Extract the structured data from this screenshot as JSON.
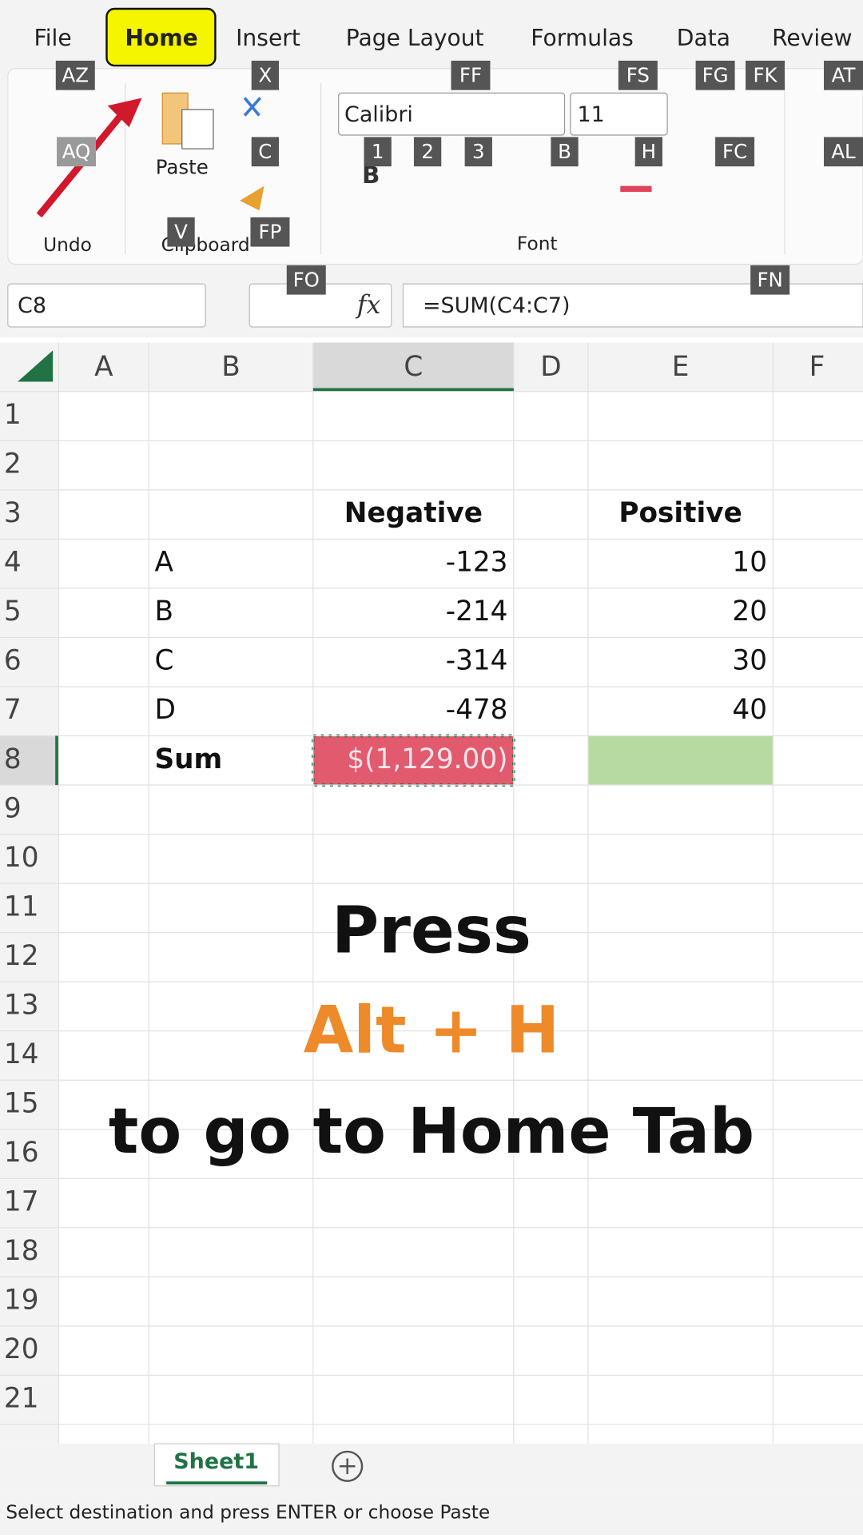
{
  "ribbon": {
    "tabs": [
      "File",
      "Home",
      "Insert",
      "Page Layout",
      "Formulas",
      "Data",
      "Review"
    ],
    "keytips": [
      "AZ",
      "X",
      "FF",
      "FS",
      "FG",
      "FK",
      "AT",
      "AQ",
      "C",
      "1",
      "2",
      "3",
      "B",
      "H",
      "FC",
      "AL",
      "V",
      "FP",
      "FO",
      "FN"
    ],
    "groups": {
      "undo": "Undo",
      "clipboard": "Clipboard",
      "font": "Font"
    },
    "paste": "Paste",
    "font_name": "Calibri",
    "font_size": "11"
  },
  "formula_bar": {
    "name_box": "C8",
    "fx": "fx",
    "formula": "=SUM(C4:C7)"
  },
  "sheet": {
    "columns": [
      "A",
      "B",
      "C",
      "D",
      "E",
      "F"
    ],
    "rows": [
      "1",
      "2",
      "3",
      "4",
      "5",
      "6",
      "7",
      "8",
      "9",
      "10",
      "11",
      "12",
      "13",
      "14",
      "15",
      "16",
      "17",
      "18",
      "19",
      "20",
      "21"
    ],
    "cells": {
      "C3": "Negative",
      "E3": "Positive",
      "B4": "A",
      "C4": -123,
      "E4": 10,
      "B5": "B",
      "C5": -214,
      "E5": 20,
      "B6": "C",
      "C6": -314,
      "E6": 30,
      "B7": "D",
      "C7": -478,
      "E7": 40,
      "B8": "Sum",
      "C8": "$(1,129.00)"
    }
  },
  "overlay": {
    "line1": "Press",
    "line2": "Alt + H",
    "line3": "to go to Home Tab"
  },
  "sheet_tab": "Sheet1",
  "status": "Select destination and press ENTER or choose Paste"
}
